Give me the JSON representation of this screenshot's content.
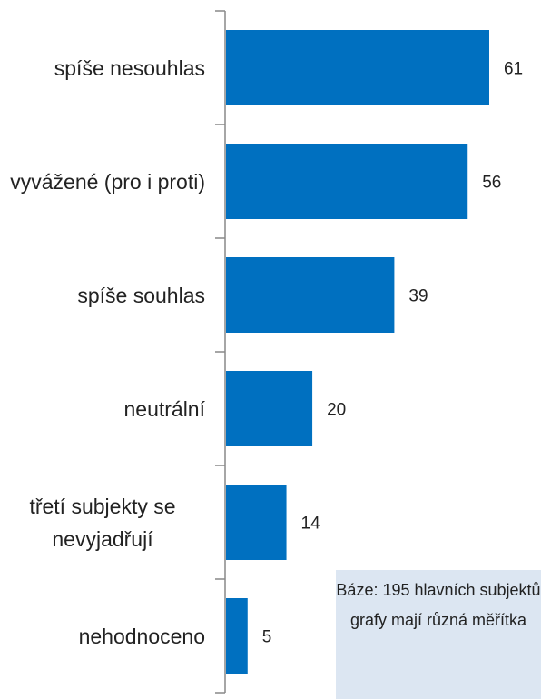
{
  "chart_data": {
    "type": "bar",
    "orientation": "horizontal",
    "categories": [
      "spíše nesouhlas",
      "vyvážené (pro i proti)",
      "spíše souhlas",
      "neutrální",
      "třetí subjekty se nevyjadřují",
      "nehodnoceno"
    ],
    "values": [
      61,
      56,
      39,
      20,
      14,
      5
    ],
    "color": "#0070c0",
    "annotations": [
      "Báze: 195 hlavních subjektů",
      "grafy mají různá měřítka"
    ]
  }
}
